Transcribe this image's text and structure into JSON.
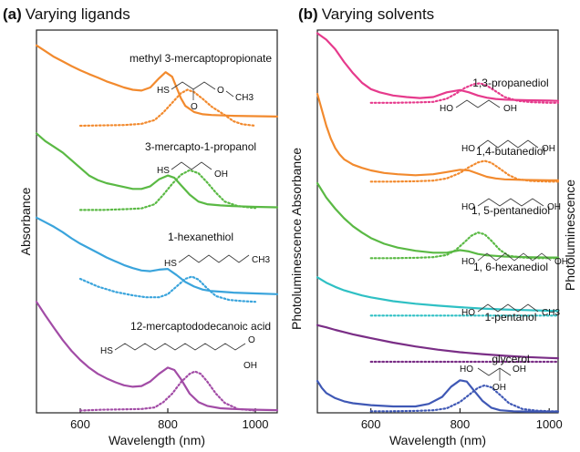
{
  "figure": {
    "panel_a": {
      "letter": "(a)",
      "title": "Varying ligands"
    },
    "panel_b": {
      "letter": "(b)",
      "title": "Varying solvents"
    }
  },
  "chart_data": [
    {
      "type": "line",
      "title": "Varying ligands",
      "panel": "(a)",
      "xlabel": "Wavelength (nm)",
      "ylabel_left": "Absorbance",
      "ylabel_right": "",
      "xlim": [
        500,
        1050
      ],
      "xticks": [
        600,
        800,
        1000
      ],
      "ylim": [
        0,
        10
      ],
      "grid": false,
      "legend": "none",
      "line_styles": {
        "absorbance": "solid",
        "photoluminescence": "dotted"
      },
      "series": [
        {
          "name": "methyl 3-mercaptopropionate",
          "color": "#f28a2e",
          "structure": {
            "left": "HS",
            "right": "CH3",
            "O_top": "O",
            "O_mid": "O"
          },
          "absorbance": {
            "x": [
              500,
              520,
              540,
              560,
              580,
              600,
              620,
              640,
              660,
              680,
              700,
              720,
              740,
              760,
              780,
              795,
              810,
              820,
              830,
              840,
              860,
              880,
              900,
              950,
              1000,
              1050
            ],
            "y": [
              9.6,
              9.45,
              9.3,
              9.18,
              9.06,
              8.95,
              8.85,
              8.76,
              8.66,
              8.58,
              8.5,
              8.44,
              8.42,
              8.5,
              8.74,
              8.9,
              8.78,
              8.5,
              8.22,
              8.02,
              7.86,
              7.8,
              7.78,
              7.76,
              7.75,
              7.74
            ]
          },
          "photoluminescence": {
            "x": [
              600,
              650,
              700,
              740,
              770,
              790,
              810,
              830,
              845,
              860,
              880,
              900,
              930,
              950,
              970,
              1000
            ],
            "y": [
              7.5,
              7.51,
              7.52,
              7.55,
              7.65,
              7.85,
              8.1,
              8.35,
              8.44,
              8.38,
              8.2,
              8.0,
              7.78,
              7.62,
              7.54,
              7.5
            ]
          }
        },
        {
          "name": "3-mercapto-1-propanol",
          "color": "#5ab944",
          "structure": {
            "left": "HS",
            "right": "OH"
          },
          "absorbance": {
            "x": [
              500,
              520,
              540,
              560,
              580,
              600,
              620,
              640,
              660,
              680,
              700,
              720,
              740,
              760,
              780,
              800,
              815,
              830,
              850,
              870,
              890,
              920,
              950,
              1000,
              1050
            ],
            "y": [
              7.3,
              7.1,
              6.95,
              6.8,
              6.6,
              6.4,
              6.2,
              6.08,
              6.0,
              5.95,
              5.9,
              5.85,
              5.85,
              5.92,
              6.1,
              6.2,
              6.14,
              5.95,
              5.7,
              5.52,
              5.45,
              5.42,
              5.4,
              5.38,
              5.37
            ]
          },
          "photoluminescence": {
            "x": [
              600,
              650,
              700,
              740,
              770,
              790,
              810,
              830,
              850,
              870,
              890,
              910,
              930,
              960,
              1000
            ],
            "y": [
              5.3,
              5.3,
              5.32,
              5.34,
              5.45,
              5.7,
              5.98,
              6.22,
              6.34,
              6.26,
              6.02,
              5.75,
              5.52,
              5.4,
              5.35
            ]
          }
        },
        {
          "name": "1-hexanethiol",
          "color": "#3aa4dc",
          "structure": {
            "left": "HS",
            "right": "CH3"
          },
          "absorbance": {
            "x": [
              500,
              520,
              540,
              560,
              580,
              600,
              620,
              640,
              660,
              680,
              700,
              720,
              740,
              760,
              780,
              800,
              820,
              840,
              860,
              880,
              900,
              950,
              1000,
              1050
            ],
            "y": [
              5.1,
              4.98,
              4.86,
              4.72,
              4.56,
              4.42,
              4.3,
              4.18,
              4.06,
              3.96,
              3.86,
              3.78,
              3.72,
              3.7,
              3.74,
              3.76,
              3.6,
              3.42,
              3.3,
              3.22,
              3.18,
              3.14,
              3.12,
              3.1
            ]
          },
          "photoluminescence": {
            "x": [
              600,
              640,
              680,
              720,
              750,
              780,
              800,
              820,
              840,
              855,
              870,
              890,
              910,
              940,
              970,
              1000
            ],
            "y": [
              3.5,
              3.3,
              3.16,
              3.07,
              3.02,
              3.02,
              3.1,
              3.3,
              3.5,
              3.56,
              3.48,
              3.25,
              3.05,
              2.95,
              2.92,
              2.9
            ]
          }
        },
        {
          "name": "12-mercaptododecanoic acid",
          "color": "#a24ca6",
          "structure": {
            "left": "HS",
            "right_top": "O",
            "right_bottom": "OH"
          },
          "absorbance": {
            "x": [
              500,
              520,
              540,
              560,
              580,
              600,
              620,
              640,
              660,
              680,
              700,
              720,
              740,
              760,
              780,
              800,
              815,
              830,
              850,
              870,
              890,
              920,
              950,
              1000,
              1050
            ],
            "y": [
              2.9,
              2.55,
              2.22,
              1.9,
              1.62,
              1.38,
              1.18,
              1.02,
              0.9,
              0.8,
              0.72,
              0.68,
              0.7,
              0.82,
              1.02,
              1.18,
              1.12,
              0.88,
              0.5,
              0.28,
              0.18,
              0.12,
              0.1,
              0.08,
              0.07
            ]
          },
          "photoluminescence": {
            "x": [
              600,
              650,
              700,
              740,
              770,
              790,
              810,
              830,
              850,
              862,
              875,
              890,
              910,
              930,
              960,
              1000
            ],
            "y": [
              0.06,
              0.08,
              0.09,
              0.1,
              0.14,
              0.28,
              0.5,
              0.8,
              1.02,
              1.08,
              1.02,
              0.82,
              0.5,
              0.26,
              0.1,
              0.06
            ]
          }
        }
      ]
    },
    {
      "type": "line",
      "title": "Varying solvents",
      "panel": "(b)",
      "xlabel": "Wavelength (nm)",
      "ylabel_left": "Photoluminescence Absorbance",
      "ylabel_right": "Photoluminescence",
      "xlim": [
        480,
        1020
      ],
      "xticks": [
        600,
        800,
        1000
      ],
      "ylim": [
        0,
        12
      ],
      "grid": false,
      "legend": "none",
      "line_styles": {
        "absorbance": "solid",
        "photoluminescence": "dotted"
      },
      "series": [
        {
          "name": "1,3-propanediol",
          "color": "#e63a8c",
          "structure": {
            "left": "HO",
            "right": "OH"
          },
          "absorbance": {
            "x": [
              480,
              500,
              520,
              540,
              560,
              580,
              600,
              620,
              650,
              680,
              710,
              740,
              770,
              800,
              820,
              840,
              860,
              880,
              900,
              950,
              1000,
              1020
            ],
            "y": [
              11.9,
              11.7,
              11.4,
              11.0,
              10.65,
              10.35,
              10.15,
              10.05,
              9.95,
              9.9,
              9.87,
              9.9,
              10.05,
              10.12,
              10.05,
              9.95,
              9.88,
              9.84,
              9.82,
              9.8,
              9.79,
              9.78
            ]
          },
          "photoluminescence": {
            "x": [
              600,
              650,
              700,
              740,
              770,
              790,
              810,
              830,
              845,
              860,
              880,
              900,
              930,
              960,
              1000,
              1020
            ],
            "y": [
              9.72,
              9.72,
              9.73,
              9.75,
              9.85,
              10.0,
              10.18,
              10.3,
              10.33,
              10.26,
              10.08,
              9.9,
              9.78,
              9.74,
              9.72,
              9.72
            ]
          }
        },
        {
          "name": "1,4-butanediol",
          "color": "#f28a2e",
          "structure": {
            "left": "HO",
            "right": "OH"
          },
          "absorbance": {
            "x": [
              480,
              490,
              500,
              510,
              520,
              530,
              540,
              560,
              580,
              600,
              630,
              660,
              700,
              740,
              770,
              800,
              820,
              840,
              860,
              880,
              900,
              950,
              1000,
              1020
            ],
            "y": [
              10.0,
              9.5,
              9.0,
              8.6,
              8.3,
              8.1,
              7.95,
              7.78,
              7.68,
              7.6,
              7.52,
              7.48,
              7.45,
              7.48,
              7.55,
              7.62,
              7.6,
              7.5,
              7.4,
              7.35,
              7.32,
              7.3,
              7.29,
              7.29
            ]
          },
          "photoluminescence": {
            "x": [
              600,
              650,
              700,
              740,
              770,
              800,
              820,
              840,
              855,
              870,
              890,
              910,
              930,
              960,
              1000,
              1020
            ],
            "y": [
              7.25,
              7.25,
              7.26,
              7.28,
              7.35,
              7.52,
              7.7,
              7.85,
              7.9,
              7.84,
              7.65,
              7.45,
              7.32,
              7.27,
              7.25,
              7.25
            ]
          }
        },
        {
          "name": "1, 5-pentanediol",
          "color": "#5ab944",
          "structure": {
            "left": "HO",
            "right": "OH"
          },
          "absorbance": {
            "x": [
              480,
              500,
              520,
              540,
              560,
              580,
              600,
              630,
              660,
              700,
              740,
              770,
              800,
              820,
              840,
              860,
              880,
              900,
              950,
              1000,
              1020
            ],
            "y": [
              7.2,
              6.75,
              6.4,
              6.1,
              5.85,
              5.65,
              5.48,
              5.3,
              5.18,
              5.08,
              5.02,
              5.02,
              5.1,
              5.06,
              4.98,
              4.94,
              4.92,
              4.9,
              4.88,
              4.87,
              4.87
            ]
          },
          "photoluminescence": {
            "x": [
              600,
              650,
              700,
              740,
              770,
              790,
              810,
              825,
              840,
              855,
              870,
              890,
              910,
              940,
              970,
              1000,
              1020
            ],
            "y": [
              4.85,
              4.85,
              4.86,
              4.88,
              4.95,
              5.1,
              5.35,
              5.55,
              5.65,
              5.6,
              5.4,
              5.1,
              4.92,
              4.87,
              4.85,
              4.85,
              4.85
            ]
          }
        },
        {
          "name": "1, 6-hexanediol",
          "color": "#2fc0c4",
          "structure": {
            "left": "HO",
            "right": "OH"
          },
          "absorbance": {
            "x": [
              480,
              500,
              520,
              540,
              560,
              580,
              600,
              650,
              700,
              750,
              800,
              850,
              900,
              950,
              1000,
              1020
            ],
            "y": [
              4.25,
              4.08,
              3.95,
              3.84,
              3.76,
              3.68,
              3.62,
              3.5,
              3.42,
              3.36,
              3.31,
              3.27,
              3.24,
              3.22,
              3.2,
              3.19
            ]
          },
          "photoluminescence": {
            "x": [
              600,
              700,
              800,
              900,
              1000,
              1020
            ],
            "y": [
              3.05,
              3.05,
              3.05,
              3.05,
              3.05,
              3.05
            ]
          }
        },
        {
          "name": "1-pentanol",
          "color": "#7a2e86",
          "structure": {
            "left": "HO",
            "right": "CH3"
          },
          "absorbance": {
            "x": [
              480,
              500,
              520,
              540,
              560,
              580,
              600,
              650,
              700,
              750,
              800,
              850,
              900,
              950,
              1000,
              1020
            ],
            "y": [
              2.75,
              2.68,
              2.6,
              2.53,
              2.46,
              2.4,
              2.34,
              2.2,
              2.08,
              1.98,
              1.9,
              1.84,
              1.79,
              1.75,
              1.72,
              1.71
            ]
          },
          "photoluminescence": {
            "x": [
              600,
              700,
              800,
              900,
              1000,
              1020
            ],
            "y": [
              1.6,
              1.6,
              1.6,
              1.6,
              1.6,
              1.6
            ]
          }
        },
        {
          "name": "glycerol",
          "color": "#3f58b5",
          "structure": {
            "top_left": "HO",
            "top_right": "OH",
            "bottom": "OH"
          },
          "absorbance": {
            "x": [
              480,
              490,
              500,
              520,
              540,
              560,
              600,
              650,
              700,
              730,
              760,
              780,
              800,
              815,
              830,
              850,
              870,
              890,
              920,
              950,
              1000,
              1020
            ],
            "y": [
              1.0,
              0.78,
              0.62,
              0.46,
              0.36,
              0.3,
              0.24,
              0.2,
              0.2,
              0.28,
              0.5,
              0.82,
              1.02,
              0.98,
              0.72,
              0.38,
              0.16,
              0.08,
              0.05,
              0.04,
              0.04,
              0.04
            ]
          },
          "photoluminescence": {
            "x": [
              600,
              650,
              700,
              740,
              770,
              800,
              820,
              840,
              855,
              870,
              890,
              910,
              940,
              970,
              1000,
              1020
            ],
            "y": [
              0.05,
              0.05,
              0.06,
              0.08,
              0.14,
              0.34,
              0.56,
              0.78,
              0.86,
              0.8,
              0.56,
              0.3,
              0.12,
              0.07,
              0.05,
              0.05
            ]
          }
        }
      ]
    }
  ]
}
